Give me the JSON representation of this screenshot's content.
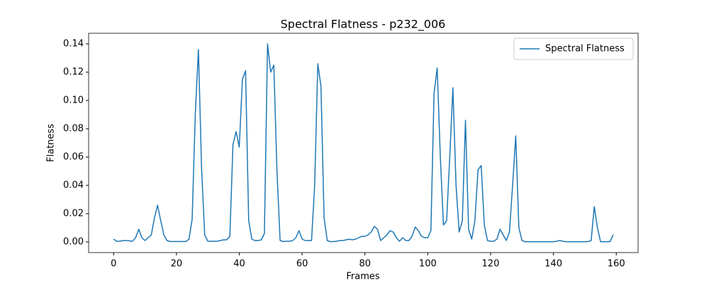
{
  "chart_data": {
    "type": "line",
    "title": "Spectral Flatness - p232_006",
    "xlabel": "Frames",
    "ylabel": "Flatness",
    "x": [
      0,
      1,
      2,
      3,
      4,
      5,
      6,
      7,
      8,
      9,
      10,
      11,
      12,
      13,
      14,
      15,
      16,
      17,
      18,
      19,
      20,
      21,
      22,
      23,
      24,
      25,
      26,
      27,
      28,
      29,
      30,
      31,
      32,
      33,
      34,
      35,
      36,
      37,
      38,
      39,
      40,
      41,
      42,
      43,
      44,
      45,
      46,
      47,
      48,
      49,
      50,
      51,
      52,
      53,
      54,
      55,
      56,
      57,
      58,
      59,
      60,
      61,
      62,
      63,
      64,
      65,
      66,
      67,
      68,
      69,
      70,
      71,
      72,
      73,
      74,
      75,
      76,
      77,
      78,
      79,
      80,
      81,
      82,
      83,
      84,
      85,
      86,
      87,
      88,
      89,
      90,
      91,
      92,
      93,
      94,
      95,
      96,
      97,
      98,
      99,
      100,
      101,
      102,
      103,
      104,
      105,
      106,
      107,
      108,
      109,
      110,
      111,
      112,
      113,
      114,
      115,
      116,
      117,
      118,
      119,
      120,
      121,
      122,
      123,
      124,
      125,
      126,
      127,
      128,
      129,
      130,
      131,
      132,
      133,
      134,
      135,
      136,
      137,
      138,
      139,
      140,
      141,
      142,
      143,
      144,
      145,
      146,
      147,
      148,
      149,
      150,
      151,
      152,
      153,
      154,
      155,
      156,
      157,
      158,
      159
    ],
    "series": [
      {
        "name": "Spectral Flatness",
        "color": "#1f77b4",
        "values": [
          0.002,
          0.0005,
          0.0005,
          0.001,
          0.001,
          0.0008,
          0.0005,
          0.003,
          0.009,
          0.003,
          0.001,
          0.003,
          0.005,
          0.017,
          0.026,
          0.015,
          0.005,
          0.001,
          0.0003,
          0.0003,
          0.0003,
          0.0003,
          0.0003,
          0.0003,
          0.002,
          0.016,
          0.09,
          0.136,
          0.052,
          0.005,
          0.0005,
          0.0005,
          0.0005,
          0.0005,
          0.001,
          0.0015,
          0.0015,
          0.004,
          0.069,
          0.078,
          0.067,
          0.115,
          0.121,
          0.015,
          0.002,
          0.001,
          0.001,
          0.0015,
          0.006,
          0.14,
          0.12,
          0.125,
          0.05,
          0.001,
          0.0003,
          0.0005,
          0.0005,
          0.001,
          0.003,
          0.008,
          0.002,
          0.001,
          0.001,
          0.001,
          0.04,
          0.126,
          0.11,
          0.017,
          0.001,
          0.0002,
          0.0003,
          0.0005,
          0.001,
          0.001,
          0.0015,
          0.002,
          0.0015,
          0.002,
          0.003,
          0.004,
          0.004,
          0.005,
          0.007,
          0.011,
          0.009,
          0.001,
          0.003,
          0.005,
          0.008,
          0.007,
          0.003,
          0.0005,
          0.003,
          0.001,
          0.001,
          0.004,
          0.0105,
          0.008,
          0.004,
          0.003,
          0.003,
          0.008,
          0.105,
          0.123,
          0.06,
          0.012,
          0.015,
          0.06,
          0.109,
          0.04,
          0.007,
          0.015,
          0.086,
          0.009,
          0.002,
          0.015,
          0.051,
          0.054,
          0.012,
          0.001,
          0.0005,
          0.0005,
          0.002,
          0.009,
          0.005,
          0.001,
          0.007,
          0.04,
          0.075,
          0.01,
          0.001,
          0.0002,
          0.0002,
          0.0002,
          0.0002,
          0.0002,
          0.0002,
          0.0002,
          0.0002,
          0.0002,
          0.0002,
          0.0005,
          0.001,
          0.0005,
          0.0002,
          0.0002,
          0.0002,
          0.0002,
          0.0002,
          0.0002,
          0.0002,
          0.0002,
          0.001,
          0.025,
          0.01,
          0.0002,
          0.0002,
          0.0002,
          0.0002,
          0.005
        ]
      }
    ],
    "xlim": [
      -7.95,
      166.95
    ],
    "ylim": [
      -0.0075,
      0.1475
    ],
    "xticks": [
      0,
      20,
      40,
      60,
      80,
      100,
      120,
      140,
      160
    ],
    "yticks": [
      {
        "value": 0,
        "label": "0.00"
      },
      {
        "value": 0.02,
        "label": "0.02"
      },
      {
        "value": 0.04,
        "label": "0.04"
      },
      {
        "value": 0.06,
        "label": "0.06"
      },
      {
        "value": 0.08,
        "label": "0.08"
      },
      {
        "value": 0.1,
        "label": "0.10"
      },
      {
        "value": 0.12,
        "label": "0.12"
      },
      {
        "value": 0.14,
        "label": "0.14"
      }
    ],
    "legend": "upper right",
    "grid": false
  }
}
